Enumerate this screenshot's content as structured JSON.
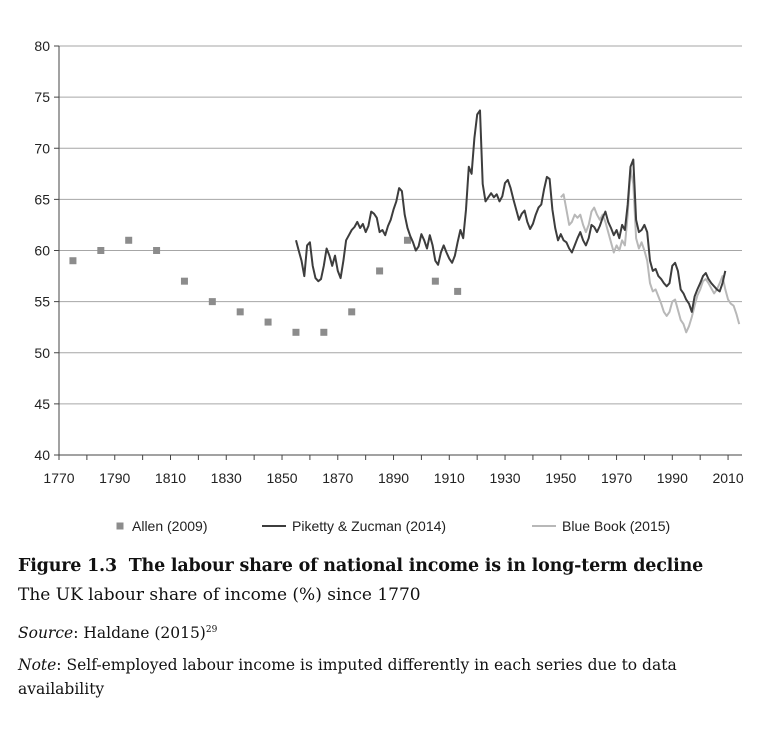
{
  "caption": {
    "label": "Figure 1.3",
    "title": "The labour share of national income is in long-term decline",
    "subtitle": "The UK labour share of income (%) since 1770",
    "source_label": "Source",
    "source_text": ": Haldane (2015)",
    "source_ref": "29",
    "note_label": "Note",
    "note_text": ": Self-employed labour income is imputed differently in each series due to data availability"
  },
  "chart_data": {
    "type": "line",
    "xlim": [
      1770,
      2015
    ],
    "ylim": [
      40,
      80
    ],
    "x_ticks": [
      1770,
      1790,
      1810,
      1830,
      1850,
      1870,
      1890,
      1910,
      1930,
      1950,
      1970,
      1990,
      2010
    ],
    "y_ticks": [
      40,
      45,
      50,
      55,
      60,
      65,
      70,
      75,
      80
    ],
    "grid": "horizontal",
    "legend_position": "bottom",
    "series": [
      {
        "name": "Allen (2009)",
        "kind": "scatter",
        "color": "#8c8c8c",
        "points": [
          [
            1775,
            59
          ],
          [
            1785,
            60
          ],
          [
            1795,
            61
          ],
          [
            1805,
            60
          ],
          [
            1815,
            57
          ],
          [
            1825,
            55
          ],
          [
            1835,
            54
          ],
          [
            1845,
            53
          ],
          [
            1855,
            52
          ],
          [
            1865,
            52
          ],
          [
            1875,
            54
          ],
          [
            1885,
            58
          ],
          [
            1895,
            61
          ],
          [
            1905,
            57
          ],
          [
            1913,
            56
          ]
        ]
      },
      {
        "name": "Piketty & Zucman (2014)",
        "kind": "line",
        "color": "#3d3d3d",
        "points": [
          [
            1855,
            61
          ],
          [
            1856,
            60
          ],
          [
            1857,
            59
          ],
          [
            1858,
            57.5
          ],
          [
            1859,
            60.5
          ],
          [
            1860,
            60.8
          ],
          [
            1861,
            58.5
          ],
          [
            1862,
            57.3
          ],
          [
            1863,
            57
          ],
          [
            1864,
            57.2
          ],
          [
            1865,
            58.5
          ],
          [
            1866,
            60.2
          ],
          [
            1867,
            59.5
          ],
          [
            1868,
            58.5
          ],
          [
            1869,
            59.5
          ],
          [
            1870,
            58
          ],
          [
            1871,
            57.3
          ],
          [
            1872,
            59
          ],
          [
            1873,
            61
          ],
          [
            1874,
            61.5
          ],
          [
            1875,
            62
          ],
          [
            1876,
            62.3
          ],
          [
            1877,
            62.8
          ],
          [
            1878,
            62.2
          ],
          [
            1879,
            62.6
          ],
          [
            1880,
            61.8
          ],
          [
            1881,
            62.4
          ],
          [
            1882,
            63.8
          ],
          [
            1883,
            63.6
          ],
          [
            1884,
            63.2
          ],
          [
            1885,
            61.8
          ],
          [
            1886,
            62
          ],
          [
            1887,
            61.5
          ],
          [
            1888,
            62.4
          ],
          [
            1889,
            63
          ],
          [
            1890,
            64
          ],
          [
            1891,
            64.8
          ],
          [
            1892,
            66.1
          ],
          [
            1893,
            65.8
          ],
          [
            1894,
            63.5
          ],
          [
            1895,
            62.2
          ],
          [
            1896,
            61.4
          ],
          [
            1897,
            60.8
          ],
          [
            1898,
            60
          ],
          [
            1899,
            60.4
          ],
          [
            1900,
            61.6
          ],
          [
            1901,
            61
          ],
          [
            1902,
            60.2
          ],
          [
            1903,
            61.5
          ],
          [
            1904,
            60.5
          ],
          [
            1905,
            59
          ],
          [
            1906,
            58.6
          ],
          [
            1907,
            59.8
          ],
          [
            1908,
            60.5
          ],
          [
            1909,
            59.8
          ],
          [
            1910,
            59.2
          ],
          [
            1911,
            58.8
          ],
          [
            1912,
            59.5
          ],
          [
            1913,
            60.8
          ],
          [
            1914,
            62
          ],
          [
            1915,
            61.2
          ],
          [
            1916,
            64
          ],
          [
            1917,
            68.2
          ],
          [
            1918,
            67.5
          ],
          [
            1919,
            71
          ],
          [
            1920,
            73.3
          ],
          [
            1921,
            73.7
          ],
          [
            1922,
            66.5
          ],
          [
            1923,
            64.8
          ],
          [
            1924,
            65.2
          ],
          [
            1925,
            65.6
          ],
          [
            1926,
            65.2
          ],
          [
            1927,
            65.5
          ],
          [
            1928,
            64.8
          ],
          [
            1929,
            65.3
          ],
          [
            1930,
            66.6
          ],
          [
            1931,
            66.9
          ],
          [
            1932,
            66.1
          ],
          [
            1933,
            65
          ],
          [
            1934,
            64
          ],
          [
            1935,
            63
          ],
          [
            1936,
            63.6
          ],
          [
            1937,
            63.9
          ],
          [
            1938,
            62.8
          ],
          [
            1939,
            62.1
          ],
          [
            1940,
            62.6
          ],
          [
            1941,
            63.5
          ],
          [
            1942,
            64.2
          ],
          [
            1943,
            64.5
          ],
          [
            1944,
            66
          ],
          [
            1945,
            67.2
          ],
          [
            1946,
            67
          ],
          [
            1947,
            64
          ],
          [
            1948,
            62.2
          ],
          [
            1949,
            61
          ],
          [
            1950,
            61.6
          ],
          [
            1951,
            61
          ],
          [
            1952,
            60.8
          ],
          [
            1953,
            60.2
          ],
          [
            1954,
            59.8
          ],
          [
            1955,
            60.5
          ],
          [
            1956,
            61.2
          ],
          [
            1957,
            61.8
          ],
          [
            1958,
            61
          ],
          [
            1959,
            60.5
          ],
          [
            1960,
            61.2
          ],
          [
            1961,
            62.5
          ],
          [
            1962,
            62.3
          ],
          [
            1963,
            61.8
          ],
          [
            1964,
            62.4
          ],
          [
            1965,
            63.2
          ],
          [
            1966,
            63.8
          ],
          [
            1967,
            62.8
          ],
          [
            1968,
            62.2
          ],
          [
            1969,
            61.5
          ],
          [
            1970,
            62
          ],
          [
            1971,
            61.2
          ],
          [
            1972,
            62.5
          ],
          [
            1973,
            62
          ],
          [
            1974,
            64.5
          ],
          [
            1975,
            68.2
          ],
          [
            1976,
            68.9
          ],
          [
            1977,
            63
          ],
          [
            1978,
            61.8
          ],
          [
            1979,
            62
          ],
          [
            1980,
            62.5
          ],
          [
            1981,
            61.8
          ],
          [
            1982,
            59
          ],
          [
            1983,
            58
          ],
          [
            1984,
            58.2
          ],
          [
            1985,
            57.5
          ],
          [
            1986,
            57.2
          ],
          [
            1987,
            56.8
          ],
          [
            1988,
            56.5
          ],
          [
            1989,
            56.8
          ],
          [
            1990,
            58.5
          ],
          [
            1991,
            58.8
          ],
          [
            1992,
            58
          ],
          [
            1993,
            56.2
          ],
          [
            1994,
            55.8
          ],
          [
            1995,
            55.2
          ],
          [
            1996,
            54.8
          ],
          [
            1997,
            54
          ],
          [
            1998,
            55.5
          ],
          [
            1999,
            56.2
          ],
          [
            2000,
            56.8
          ],
          [
            2001,
            57.5
          ],
          [
            2002,
            57.8
          ],
          [
            2003,
            57.2
          ],
          [
            2004,
            56.8
          ],
          [
            2005,
            56.5
          ],
          [
            2006,
            56.2
          ],
          [
            2007,
            56
          ],
          [
            2008,
            56.8
          ],
          [
            2009,
            58
          ]
        ]
      },
      {
        "name": "Blue Book (2015)",
        "kind": "line",
        "color": "#b8b8b8",
        "points": [
          [
            1950,
            65.2
          ],
          [
            1951,
            65.5
          ],
          [
            1952,
            64
          ],
          [
            1953,
            62.5
          ],
          [
            1954,
            62.8
          ],
          [
            1955,
            63.5
          ],
          [
            1956,
            63.2
          ],
          [
            1957,
            63.5
          ],
          [
            1958,
            62.5
          ],
          [
            1959,
            61.8
          ],
          [
            1960,
            62.5
          ],
          [
            1961,
            63.8
          ],
          [
            1962,
            64.2
          ],
          [
            1963,
            63.5
          ],
          [
            1964,
            63
          ],
          [
            1965,
            63.5
          ],
          [
            1966,
            62.8
          ],
          [
            1967,
            61.8
          ],
          [
            1968,
            60.8
          ],
          [
            1969,
            59.8
          ],
          [
            1970,
            60.5
          ],
          [
            1971,
            60
          ],
          [
            1972,
            61
          ],
          [
            1973,
            60.5
          ],
          [
            1974,
            63.5
          ],
          [
            1975,
            68
          ],
          [
            1976,
            66.5
          ],
          [
            1977,
            61.2
          ],
          [
            1978,
            60.2
          ],
          [
            1979,
            60.8
          ],
          [
            1980,
            60
          ],
          [
            1981,
            59
          ],
          [
            1982,
            56.8
          ],
          [
            1983,
            56
          ],
          [
            1984,
            56.2
          ],
          [
            1985,
            55.5
          ],
          [
            1986,
            54.8
          ],
          [
            1987,
            54
          ],
          [
            1988,
            53.6
          ],
          [
            1989,
            54
          ],
          [
            1990,
            55
          ],
          [
            1991,
            55.2
          ],
          [
            1992,
            54.2
          ],
          [
            1993,
            53.2
          ],
          [
            1994,
            52.8
          ],
          [
            1995,
            52
          ],
          [
            1996,
            52.6
          ],
          [
            1997,
            53.5
          ],
          [
            1998,
            54.6
          ],
          [
            1999,
            55.6
          ],
          [
            2000,
            56.2
          ],
          [
            2001,
            57
          ],
          [
            2002,
            57.2
          ],
          [
            2003,
            56.8
          ],
          [
            2004,
            56.3
          ],
          [
            2005,
            55.8
          ],
          [
            2006,
            56.2
          ],
          [
            2007,
            56.8
          ],
          [
            2008,
            57.5
          ],
          [
            2009,
            56.2
          ],
          [
            2010,
            55.2
          ],
          [
            2011,
            54.8
          ],
          [
            2012,
            54.6
          ],
          [
            2013,
            53.8
          ],
          [
            2014,
            52.8
          ]
        ]
      }
    ]
  }
}
